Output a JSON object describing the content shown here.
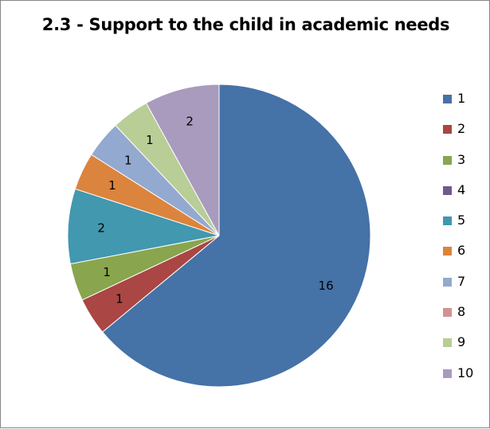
{
  "chart_data": {
    "type": "pie",
    "title": "2.3 - Support to the child in academic needs",
    "categories": [
      "1",
      "2",
      "3",
      "4",
      "5",
      "6",
      "7",
      "8",
      "9",
      "10"
    ],
    "values": [
      16,
      1,
      1,
      0,
      2,
      1,
      1,
      0,
      1,
      2
    ],
    "colors": [
      "#4572A7",
      "#AA4643",
      "#89A54E",
      "#71588F",
      "#4198AF",
      "#DB843D",
      "#93A9CF",
      "#D19392",
      "#B9CD96",
      "#A99BBD"
    ],
    "legend_position": "right",
    "start_angle": "12 o'clock",
    "direction": "clockwise"
  }
}
